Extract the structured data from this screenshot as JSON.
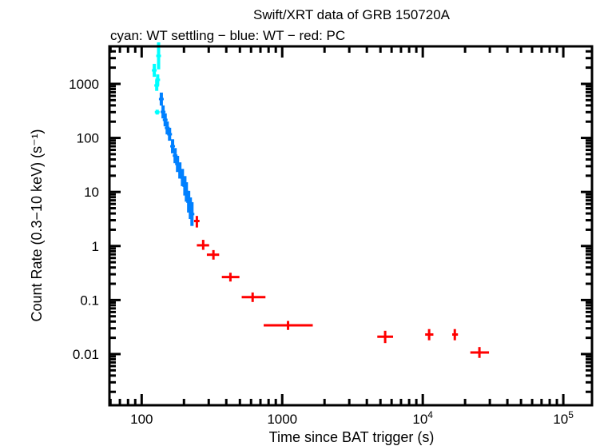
{
  "chart_data": {
    "type": "scatter",
    "title": "Swift/XRT data of GRB 150720A",
    "subtitle": "cyan: WT settling − blue: WT − red: PC",
    "xlabel": "Time since BAT trigger (s)",
    "ylabel": "Count Rate (0.3−10 keV) (s⁻¹)",
    "xscale": "log",
    "yscale": "log",
    "xlim": [
      59,
      160000
    ],
    "ylim": [
      0.00113,
      4950
    ],
    "x_ticks": [
      {
        "value": 100,
        "label": "100",
        "exp": ""
      },
      {
        "value": 1000,
        "label": "1000",
        "exp": ""
      },
      {
        "value": 10000,
        "label": "10",
        "exp": "4"
      },
      {
        "value": 100000,
        "label": "10",
        "exp": "5"
      }
    ],
    "y_ticks": [
      {
        "value": 1000,
        "label": "1000"
      },
      {
        "value": 100,
        "label": "100"
      },
      {
        "value": 10,
        "label": "10"
      },
      {
        "value": 1,
        "label": "1"
      },
      {
        "value": 0.1,
        "label": "0.1"
      },
      {
        "value": 0.01,
        "label": "0.01"
      }
    ],
    "grid": false,
    "series": [
      {
        "mode": "WT settling",
        "color": "#00ffff",
        "points": [
          [
            132,
            3300,
            0.25
          ],
          [
            123,
            1780,
            0.12
          ],
          [
            130,
            1190,
            0.1
          ],
          [
            128,
            935,
            0.1
          ],
          [
            129,
            300,
            0.0
          ]
        ]
      },
      {
        "mode": "WT",
        "color": "#0080ff",
        "points": [
          [
            138,
            524,
            0.12
          ],
          [
            142,
            303,
            0.12
          ],
          [
            147,
            216,
            0.12
          ],
          [
            152,
            153,
            0.12
          ],
          [
            158,
            117,
            0.12
          ],
          [
            166,
            70,
            0.13
          ],
          [
            173,
            47,
            0.14
          ],
          [
            180,
            33,
            0.15
          ],
          [
            187,
            25,
            0.15
          ],
          [
            195,
            18.5,
            0.16
          ],
          [
            203,
            13,
            0.18
          ],
          [
            208,
            10,
            0.18
          ],
          [
            216,
            6.6,
            0.2
          ],
          [
            222,
            5.0,
            0.2
          ],
          [
            228,
            3.9,
            0.22
          ]
        ]
      },
      {
        "mode": "PC",
        "color": "#ff0000",
        "points": [
          {
            "t": 247,
            "t_lo": 236,
            "t_hi": 258,
            "rate": 2.9,
            "r_lo": 2.2,
            "r_hi": 3.6
          },
          {
            "t": 274,
            "t_lo": 247,
            "t_hi": 302,
            "rate": 1.03,
            "r_lo": 0.85,
            "r_hi": 1.3
          },
          {
            "t": 324,
            "t_lo": 291,
            "t_hi": 356,
            "rate": 0.69,
            "r_lo": 0.56,
            "r_hi": 0.84
          },
          {
            "t": 428,
            "t_lo": 372,
            "t_hi": 496,
            "rate": 0.266,
            "r_lo": 0.22,
            "r_hi": 0.32
          },
          {
            "t": 616,
            "t_lo": 515,
            "t_hi": 760,
            "rate": 0.113,
            "r_lo": 0.092,
            "r_hi": 0.138
          },
          {
            "t": 1100,
            "t_lo": 738,
            "t_hi": 1650,
            "rate": 0.034,
            "r_lo": 0.028,
            "r_hi": 0.041
          },
          {
            "t": 5400,
            "t_lo": 4750,
            "t_hi": 6150,
            "rate": 0.021,
            "r_lo": 0.016,
            "r_hi": 0.027
          },
          {
            "t": 11100,
            "t_lo": 10400,
            "t_hi": 11900,
            "rate": 0.023,
            "r_lo": 0.018,
            "r_hi": 0.029
          },
          {
            "t": 16900,
            "t_lo": 16200,
            "t_hi": 17800,
            "rate": 0.023,
            "r_lo": 0.018,
            "r_hi": 0.029
          },
          {
            "t": 25300,
            "t_lo": 21800,
            "t_hi": 29600,
            "rate": 0.0107,
            "r_lo": 0.0085,
            "r_hi": 0.0135
          }
        ]
      }
    ]
  }
}
